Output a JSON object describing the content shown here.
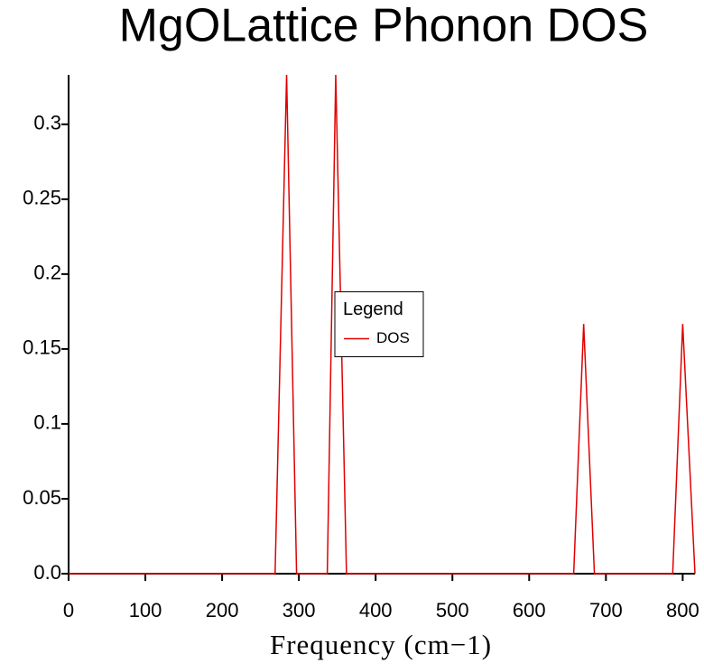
{
  "chart_data": {
    "type": "line",
    "title": "MgOLattice Phonon DOS",
    "x_label": "Frequency (cm−1)",
    "x": [
      0,
      269,
      284,
      297,
      337,
      348,
      362,
      658,
      671,
      685,
      787,
      800,
      816
    ],
    "series": [
      {
        "name": "DOS",
        "color": "#e00000",
        "values": [
          0,
          0,
          0.333,
          0,
          0,
          0.333,
          0,
          0,
          0.1667,
          0,
          0,
          0.1667,
          0
        ]
      }
    ],
    "xlim": [
      0,
      816
    ],
    "xticks": [
      0,
      100,
      200,
      300,
      400,
      500,
      600,
      700,
      800
    ],
    "ylim": [
      0,
      0.333
    ],
    "yticks": [
      {
        "value": 0,
        "label": "0.0"
      },
      0.05,
      0.1,
      0.15,
      0.2,
      0.25,
      0.3
    ],
    "legend_title": "Legend",
    "legend_position": "center"
  }
}
